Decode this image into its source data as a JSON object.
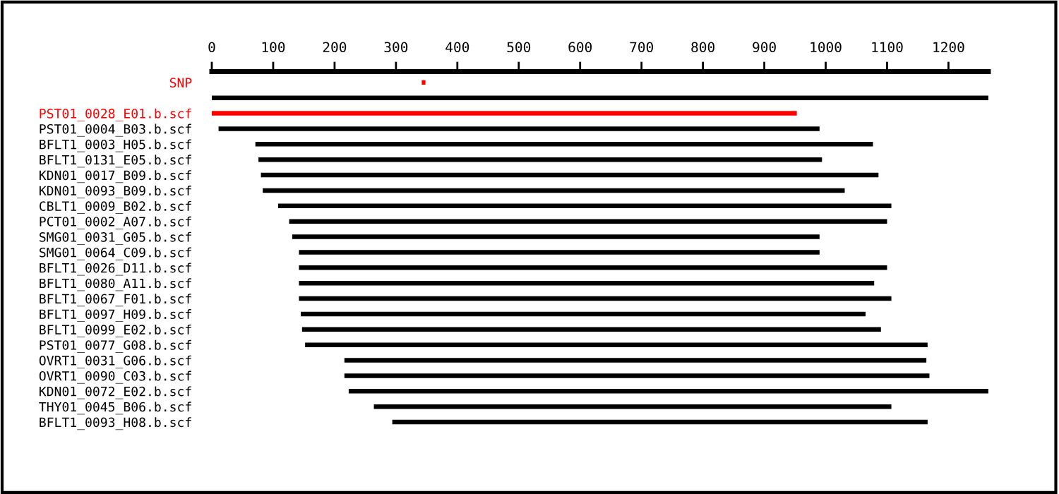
{
  "chart_data": {
    "type": "bar",
    "orientation": "horizontal",
    "categories": [
      "SNP",
      null,
      "PST01_0028_E01.b.scf",
      "PST01_0004_B03.b.scf",
      "BFLT1_0003_H05.b.scf",
      "BFLT1_0131_E05.b.scf",
      "KDN01_0017_B09.b.scf",
      "KDN01_0093_B09.b.scf",
      "CBLT1_0009_B02.b.scf",
      "PCT01_0002_A07.b.scf",
      "SMG01_0031_G05.b.scf",
      "SMG01_0064_C09.b.scf",
      "BFLT1_0026_D11.b.scf",
      "BFLT1_0080_A11.b.scf",
      "BFLT1_0067_F01.b.scf",
      "BFLT1_0097_H09.b.scf",
      "BFLT1_0099_E02.b.scf",
      "PST01_0077_G08.b.scf",
      "OVRT1_0031_G06.b.scf",
      "OVRT1_0090_C03.b.scf",
      "KDN01_0072_E02.b.scf",
      "THY01_0045_B06.b.scf",
      "BFLT1_0093_H08.b.scf"
    ],
    "base": [
      342,
      0,
      0,
      11,
      71,
      76,
      80,
      83,
      108,
      126,
      131,
      142,
      142,
      142,
      142,
      145,
      147,
      152,
      216,
      216,
      223,
      264,
      294
    ],
    "values": [
      6,
      1265,
      953,
      979,
      1006,
      918,
      1006,
      948,
      999,
      974,
      859,
      848,
      958,
      937,
      965,
      920,
      943,
      1014,
      948,
      953,
      1042,
      843,
      872
    ],
    "colors": [
      "#ff0000",
      "#000000",
      "#ff0000",
      "#000000",
      "#000000",
      "#000000",
      "#000000",
      "#000000",
      "#000000",
      "#000000",
      "#000000",
      "#000000",
      "#000000",
      "#000000",
      "#000000",
      "#000000",
      "#000000",
      "#000000",
      "#000000",
      "#000000",
      "#000000",
      "#000000",
      "#000000"
    ],
    "xlim": [
      0,
      1265
    ],
    "xticks": [
      0,
      100,
      200,
      300,
      400,
      500,
      600,
      700,
      800,
      900,
      1000,
      1100,
      1200
    ],
    "grid": false,
    "legend": false
  }
}
